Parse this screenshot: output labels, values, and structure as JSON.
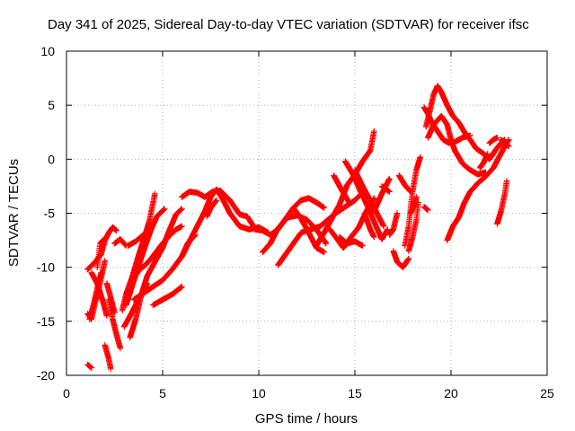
{
  "chart_data": {
    "type": "scatter",
    "title": "Day 341 of 2025, Sidereal Day-to-day VTEC variation (SDTVAR) for receiver ifsc",
    "xlabel": "GPS time / hours",
    "ylabel": "SDTVAR / TECUs",
    "xlim": [
      0,
      25
    ],
    "ylim": [
      -20,
      10
    ],
    "xticks": [
      0,
      5,
      10,
      15,
      20,
      25
    ],
    "yticks": [
      -20,
      -15,
      -10,
      -5,
      0,
      5,
      10
    ],
    "grid": true,
    "marker": "plus",
    "color": "#ff0000",
    "tracks": [
      [
        [
          1.1,
          -10.2
        ],
        [
          1.5,
          -9.5
        ],
        [
          1.8,
          -8.8
        ],
        [
          2.0,
          -7.5
        ],
        [
          2.2,
          -6.8
        ],
        [
          2.4,
          -6.3
        ],
        [
          2.6,
          -6.6
        ]
      ],
      [
        [
          1.1,
          -14.3
        ],
        [
          1.3,
          -14.8
        ],
        [
          1.5,
          -13.2
        ],
        [
          1.7,
          -11.8
        ],
        [
          1.9,
          -10.2
        ],
        [
          2.0,
          -9.4
        ]
      ],
      [
        [
          1.2,
          -14.8
        ],
        [
          1.4,
          -13.5
        ],
        [
          1.6,
          -12.0
        ],
        [
          1.8,
          -10.5
        ]
      ],
      [
        [
          1.3,
          -10.5
        ],
        [
          1.6,
          -11.5
        ],
        [
          1.9,
          -13.2
        ],
        [
          2.1,
          -14.5
        ]
      ],
      [
        [
          1.6,
          -10.0
        ],
        [
          1.75,
          -7.8
        ],
        [
          1.9,
          -7.5
        ]
      ],
      [
        [
          1.1,
          -19.0
        ],
        [
          1.3,
          -19.3
        ]
      ],
      [
        [
          2.2,
          -13.0
        ],
        [
          2.4,
          -14.8
        ],
        [
          2.6,
          -16.2
        ],
        [
          2.8,
          -17.5
        ]
      ],
      [
        [
          2.0,
          -17.2
        ],
        [
          2.2,
          -18.5
        ],
        [
          2.3,
          -19.4
        ]
      ],
      [
        [
          2.1,
          -11.5
        ],
        [
          2.3,
          -12.8
        ],
        [
          2.5,
          -14.2
        ]
      ],
      [
        [
          2.5,
          -7.8
        ],
        [
          2.8,
          -7.4
        ],
        [
          3.1,
          -8.0
        ]
      ],
      [
        [
          2.9,
          -14.0
        ],
        [
          3.1,
          -12.5
        ],
        [
          3.4,
          -11.0
        ],
        [
          3.7,
          -9.2
        ],
        [
          4.0,
          -7.5
        ],
        [
          4.3,
          -5.8
        ],
        [
          4.6,
          -3.2
        ]
      ],
      [
        [
          3.1,
          -13.5
        ],
        [
          3.4,
          -11.8
        ],
        [
          3.8,
          -9.6
        ],
        [
          4.1,
          -8.0
        ],
        [
          4.4,
          -6.5
        ],
        [
          4.7,
          -5.3
        ],
        [
          5.1,
          -4.6
        ]
      ],
      [
        [
          3.3,
          -16.5
        ],
        [
          3.6,
          -14.8
        ],
        [
          3.9,
          -12.5
        ],
        [
          4.2,
          -10.8
        ],
        [
          4.6,
          -9.5
        ],
        [
          5.0,
          -8.2
        ],
        [
          5.3,
          -6.8
        ],
        [
          5.7,
          -5.1
        ],
        [
          6.0,
          -4.6
        ]
      ],
      [
        [
          3.0,
          -15.5
        ],
        [
          3.4,
          -14.2
        ],
        [
          3.8,
          -12.8
        ],
        [
          4.2,
          -11.5
        ]
      ],
      [
        [
          3.5,
          -11.0
        ],
        [
          3.8,
          -10.2
        ],
        [
          4.1,
          -9.8
        ],
        [
          4.4,
          -9.2
        ],
        [
          4.7,
          -8.5
        ],
        [
          5.0,
          -7.8
        ],
        [
          5.4,
          -7.0
        ],
        [
          5.7,
          -6.5
        ],
        [
          6.0,
          -6.2
        ]
      ],
      [
        [
          3.2,
          -8.0
        ],
        [
          3.6,
          -7.6
        ],
        [
          4.0,
          -7.0
        ]
      ],
      [
        [
          3.5,
          -13.0
        ],
        [
          4.0,
          -12.4
        ],
        [
          4.5,
          -11.8
        ],
        [
          5.0,
          -11.2
        ],
        [
          5.5,
          -10.2
        ],
        [
          6.0,
          -9.0
        ],
        [
          6.3,
          -7.8
        ],
        [
          6.7,
          -7.0
        ]
      ],
      [
        [
          4.5,
          -13.5
        ],
        [
          5.0,
          -13.0
        ],
        [
          5.5,
          -12.5
        ],
        [
          6.0,
          -11.8
        ]
      ],
      [
        [
          6.0,
          -9.0
        ],
        [
          6.4,
          -7.6
        ],
        [
          6.8,
          -6.2
        ],
        [
          7.2,
          -4.8
        ],
        [
          7.5,
          -3.5
        ],
        [
          7.8,
          -2.8
        ],
        [
          8.1,
          -3.6
        ],
        [
          8.5,
          -5.0
        ],
        [
          9.0,
          -6.2
        ],
        [
          9.5,
          -6.5
        ],
        [
          10.0,
          -6.3
        ],
        [
          10.5,
          -6.8
        ]
      ],
      [
        [
          6.0,
          -3.5
        ],
        [
          6.4,
          -3.0
        ],
        [
          6.8,
          -3.1
        ],
        [
          7.2,
          -3.5
        ],
        [
          7.6,
          -3.0
        ],
        [
          8.0,
          -2.9
        ],
        [
          8.5,
          -3.8
        ],
        [
          9.0,
          -5.1
        ],
        [
          9.4,
          -5.3
        ],
        [
          9.8,
          -6.4
        ]
      ],
      [
        [
          7.3,
          -5.3
        ],
        [
          7.5,
          -4.5
        ],
        [
          7.8,
          -3.8
        ]
      ],
      [
        [
          9.8,
          -6.5
        ],
        [
          10.2,
          -6.6
        ],
        [
          10.6,
          -7.0
        ],
        [
          11.0,
          -6.5
        ],
        [
          11.4,
          -5.5
        ],
        [
          11.8,
          -4.5
        ],
        [
          12.2,
          -3.8
        ],
        [
          12.6,
          -3.6
        ],
        [
          13.0,
          -4.0
        ],
        [
          13.4,
          -4.5
        ]
      ],
      [
        [
          10.2,
          -8.6
        ],
        [
          10.6,
          -7.8
        ],
        [
          11.0,
          -6.4
        ],
        [
          11.5,
          -5.4
        ],
        [
          12.0,
          -5.2
        ],
        [
          12.5,
          -5.6
        ],
        [
          13.0,
          -6.5
        ],
        [
          13.5,
          -7.8
        ]
      ],
      [
        [
          11.0,
          -9.8
        ],
        [
          11.4,
          -8.8
        ],
        [
          11.8,
          -7.8
        ],
        [
          12.2,
          -6.8
        ],
        [
          12.7,
          -6.5
        ],
        [
          13.2,
          -6.2
        ],
        [
          13.6,
          -5.6
        ],
        [
          14.0,
          -5.0
        ],
        [
          14.5,
          -4.4
        ],
        [
          15.0,
          -3.8
        ],
        [
          15.5,
          -2.9
        ]
      ],
      [
        [
          11.8,
          -4.5
        ],
        [
          12.2,
          -5.5
        ],
        [
          12.6,
          -6.8
        ],
        [
          13.0,
          -8.2
        ],
        [
          13.4,
          -8.6
        ]
      ],
      [
        [
          13.0,
          -8.0
        ],
        [
          13.4,
          -6.8
        ],
        [
          13.8,
          -5.5
        ],
        [
          14.2,
          -4.2
        ],
        [
          14.6,
          -2.4
        ],
        [
          15.0,
          -1.4
        ],
        [
          15.4,
          -0.2
        ],
        [
          15.8,
          0.8
        ],
        [
          16.0,
          2.6
        ]
      ],
      [
        [
          13.7,
          -6.5
        ],
        [
          14.0,
          -7.2
        ],
        [
          14.4,
          -8.2
        ],
        [
          14.8,
          -7.2
        ],
        [
          15.2,
          -6.3
        ],
        [
          15.6,
          -4.8
        ],
        [
          16.0,
          -3.6
        ]
      ],
      [
        [
          13.9,
          -1.5
        ],
        [
          14.3,
          -2.8
        ],
        [
          14.7,
          -4.0
        ]
      ],
      [
        [
          15.0,
          -1.0
        ],
        [
          15.4,
          -2.5
        ],
        [
          15.8,
          -3.8
        ],
        [
          16.2,
          -5.2
        ],
        [
          16.5,
          -6.2
        ]
      ],
      [
        [
          15.5,
          -5.0
        ],
        [
          15.8,
          -6.5
        ],
        [
          16.0,
          -7.2
        ]
      ],
      [
        [
          14.5,
          -0.2
        ],
        [
          14.9,
          -1.4
        ],
        [
          15.3,
          -3.0
        ],
        [
          15.7,
          -4.5
        ],
        [
          16.1,
          -6.2
        ],
        [
          16.4,
          -7.4
        ],
        [
          16.7,
          -6.5
        ]
      ],
      [
        [
          16.0,
          -4.8
        ],
        [
          16.4,
          -3.2
        ],
        [
          16.8,
          -1.8
        ]
      ],
      [
        [
          14.2,
          -7.2
        ],
        [
          14.6,
          -7.8
        ],
        [
          15.0,
          -7.6
        ],
        [
          15.4,
          -8.0
        ]
      ],
      [
        [
          16.4,
          -2.5
        ],
        [
          16.8,
          -3.0
        ]
      ],
      [
        [
          17.0,
          -8.5
        ],
        [
          17.2,
          -9.5
        ],
        [
          17.5,
          -10.0
        ],
        [
          17.8,
          -9.2
        ]
      ],
      [
        [
          17.3,
          -1.5
        ],
        [
          17.6,
          -2.4
        ],
        [
          17.9,
          -3.0
        ]
      ],
      [
        [
          16.8,
          -7.0
        ],
        [
          17.0,
          -6.5
        ],
        [
          17.2,
          -5.0
        ]
      ],
      [
        [
          17.6,
          -8.0
        ],
        [
          17.8,
          -6.2
        ],
        [
          17.9,
          -4.5
        ],
        [
          18.0,
          -3.0
        ],
        [
          18.2,
          -1.0
        ],
        [
          18.4,
          0.2
        ]
      ],
      [
        [
          17.8,
          -8.5
        ],
        [
          18.0,
          -7.2
        ],
        [
          18.2,
          -5.6
        ],
        [
          18.3,
          -4.0
        ]
      ],
      [
        [
          17.9,
          -5.0
        ],
        [
          18.1,
          -4.2
        ],
        [
          18.2,
          -3.5
        ]
      ],
      [
        [
          18.6,
          -4.4
        ],
        [
          18.8,
          -4.7
        ]
      ],
      [
        [
          18.7,
          3.0
        ],
        [
          18.9,
          4.5
        ],
        [
          19.1,
          6.0
        ],
        [
          19.3,
          6.8
        ],
        [
          19.5,
          6.2
        ],
        [
          19.8,
          5.0
        ],
        [
          20.1,
          4.0
        ],
        [
          20.4,
          3.4
        ],
        [
          20.7,
          2.5
        ],
        [
          21.0,
          1.8
        ],
        [
          21.3,
          1.0
        ],
        [
          21.7,
          0.5
        ],
        [
          22.0,
          0.0
        ],
        [
          22.3,
          0.8
        ],
        [
          22.6,
          1.5
        ],
        [
          22.8,
          1.8
        ]
      ],
      [
        [
          18.6,
          4.8
        ],
        [
          18.8,
          4.2
        ],
        [
          19.0,
          3.4
        ],
        [
          19.3,
          2.6
        ],
        [
          19.6,
          1.8
        ],
        [
          19.9,
          1.5
        ],
        [
          20.2,
          1.6
        ],
        [
          20.6,
          2.0
        ],
        [
          21.0,
          2.2
        ]
      ],
      [
        [
          18.8,
          2.0
        ],
        [
          19.1,
          3.2
        ],
        [
          19.5,
          4.0
        ],
        [
          19.8,
          3.2
        ],
        [
          20.0,
          1.8
        ],
        [
          20.2,
          0.8
        ],
        [
          20.6,
          -0.4
        ],
        [
          21.0,
          -1.0
        ],
        [
          21.4,
          -1.4
        ],
        [
          21.8,
          -1.2
        ]
      ],
      [
        [
          19.8,
          -7.5
        ],
        [
          20.1,
          -6.2
        ],
        [
          20.4,
          -5.4
        ],
        [
          20.7,
          -4.0
        ],
        [
          21.0,
          -3.0
        ],
        [
          21.4,
          -2.2
        ],
        [
          21.8,
          -1.6
        ],
        [
          22.2,
          -0.8
        ],
        [
          22.5,
          0.2
        ],
        [
          22.8,
          1.2
        ],
        [
          23.0,
          1.8
        ]
      ],
      [
        [
          21.5,
          -0.8
        ],
        [
          21.7,
          -0.3
        ],
        [
          21.9,
          0.5
        ]
      ],
      [
        [
          22.4,
          -6.0
        ],
        [
          22.6,
          -4.8
        ],
        [
          22.8,
          -3.2
        ],
        [
          22.9,
          -2.0
        ]
      ],
      [
        [
          22.6,
          1.8
        ],
        [
          22.8,
          1.5
        ],
        [
          23.0,
          1.2
        ]
      ],
      [
        [
          22.0,
          1.5
        ],
        [
          22.2,
          1.8
        ],
        [
          22.4,
          2.0
        ]
      ]
    ]
  }
}
